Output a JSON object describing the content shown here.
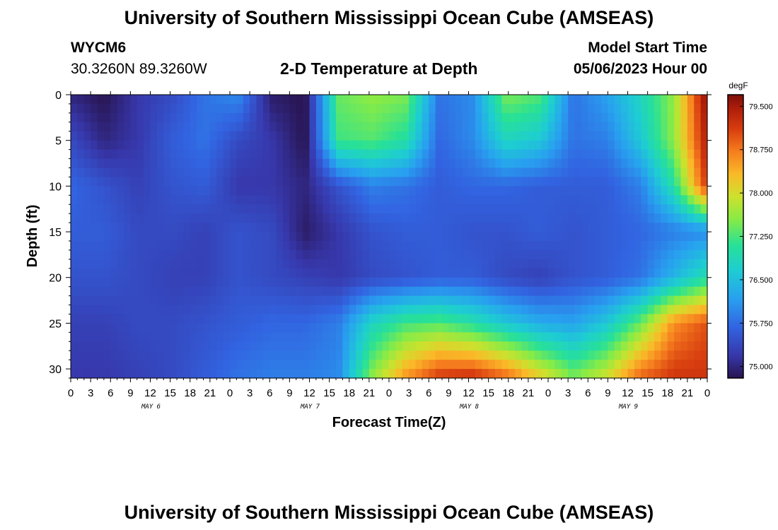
{
  "header": {
    "title": "University of Southern Mississippi Ocean Cube (AMSEAS)",
    "station_id": "WYCM6",
    "coords": "30.3260N  89.3260W",
    "plot_title": "2-D Temperature at Depth",
    "model_start_label": "Model Start Time",
    "model_start_value": "05/06/2023 Hour 00"
  },
  "footer": {
    "title": "University of Southern Mississippi Ocean Cube (AMSEAS)"
  },
  "chart_data": {
    "type": "heatmap",
    "title": "2-D Temperature at Depth",
    "xlabel": "Forecast Time(Z)",
    "ylabel": "Depth (ft)",
    "colorbar_label": "degF",
    "x_hours": [
      0,
      3,
      6,
      9,
      12,
      15,
      18,
      21,
      24,
      27,
      30,
      33,
      36,
      39,
      42,
      45,
      48,
      51,
      54,
      57,
      60,
      63,
      66,
      69,
      72,
      75,
      78,
      81,
      84,
      87,
      90,
      93,
      96
    ],
    "x_tick_labels": [
      "0",
      "3",
      "6",
      "9",
      "12",
      "15",
      "18",
      "21",
      "0",
      "3",
      "6",
      "9",
      "12",
      "15",
      "18",
      "21",
      "0",
      "3",
      "6",
      "9",
      "12",
      "15",
      "18",
      "21",
      "0",
      "3",
      "6",
      "9",
      "12",
      "15",
      "18",
      "21",
      "0"
    ],
    "day_labels": [
      {
        "label": "MAY 6",
        "hour": 12
      },
      {
        "label": "MAY 7",
        "hour": 36
      },
      {
        "label": "MAY 8",
        "hour": 60
      },
      {
        "label": "MAY 9",
        "hour": 84
      }
    ],
    "y_ticks": [
      0,
      5,
      10,
      15,
      20,
      25,
      30
    ],
    "depths_ft": [
      0,
      5,
      10,
      15,
      20,
      25,
      31
    ],
    "xlim": [
      0,
      96
    ],
    "ylim": [
      0,
      31
    ],
    "colorbar_ticks": [
      "79.500",
      "78.750",
      "78.000",
      "77.250",
      "76.500",
      "75.750",
      "75.000"
    ],
    "colorbar_range": [
      74.8,
      79.7
    ],
    "temperature_degF": [
      [
        75.0,
        74.8,
        75.2,
        75.4,
        75.8,
        76.0,
        74.9,
        74.8,
        77.4,
        77.6,
        77.5,
        75.8,
        76.0,
        77.5,
        77.3,
        75.8,
        76.2,
        76.8,
        77.6,
        79.7
      ],
      [
        75.4,
        75.0,
        75.2,
        75.6,
        75.8,
        75.4,
        75.2,
        74.8,
        77.2,
        77.3,
        77.0,
        75.7,
        76.0,
        76.8,
        76.6,
        75.8,
        75.9,
        76.6,
        77.6,
        79.5
      ],
      [
        75.7,
        75.5,
        75.3,
        75.5,
        75.6,
        75.2,
        75.2,
        75.0,
        75.5,
        75.9,
        75.8,
        75.6,
        75.7,
        75.7,
        75.6,
        75.6,
        75.6,
        75.9,
        77.0,
        79.2
      ],
      [
        75.6,
        75.6,
        75.4,
        75.4,
        75.3,
        75.5,
        75.4,
        74.9,
        75.2,
        75.5,
        75.6,
        75.6,
        75.5,
        75.5,
        75.6,
        75.5,
        75.6,
        75.7,
        75.9,
        76.0
      ],
      [
        75.5,
        75.5,
        75.4,
        75.3,
        75.3,
        75.5,
        75.4,
        75.3,
        75.2,
        75.4,
        75.5,
        75.6,
        75.6,
        75.4,
        75.3,
        75.5,
        75.6,
        75.8,
        76.4,
        77.0
      ],
      [
        75.3,
        75.3,
        75.4,
        75.4,
        75.5,
        75.6,
        75.7,
        75.7,
        75.9,
        76.8,
        77.2,
        77.3,
        77.0,
        76.6,
        76.3,
        76.2,
        76.6,
        77.4,
        78.6,
        79.0
      ],
      [
        75.2,
        75.2,
        75.3,
        75.4,
        75.6,
        75.8,
        75.9,
        75.9,
        76.0,
        77.6,
        78.6,
        79.2,
        79.3,
        78.9,
        78.2,
        77.5,
        78.0,
        78.9,
        79.2,
        79.2
      ]
    ]
  }
}
